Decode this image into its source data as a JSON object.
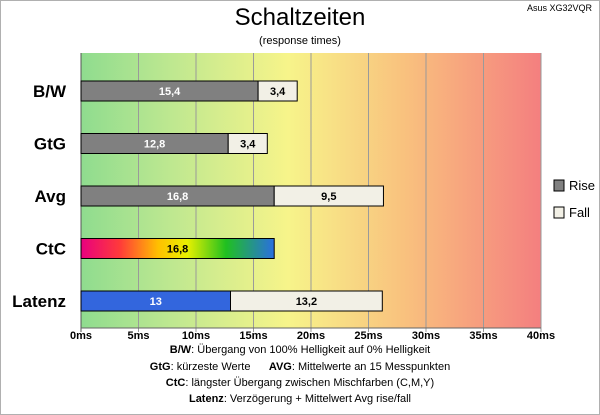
{
  "header": {
    "title": "Schaltzeiten",
    "subtitle": "(response times)",
    "corner": "Asus XG32VQR"
  },
  "footnotes": [
    {
      "key": "B/W",
      "text": ":  Übergang von 100% Helligkeit auf 0% Helligkeit"
    },
    {
      "key": "GtG",
      "text": ": kürzeste  Werte",
      "key2": "AVG",
      "text2": ": Mittelwerte  an 15 Messpunkten"
    },
    {
      "key": "CtC",
      "text": ": längster Übergang  zwischen Mischfarben (C,M,Y)"
    },
    {
      "key": "Latenz",
      "text": ": Verzögerung  + Mittelwert  Avg rise/fall"
    }
  ],
  "chart_data": {
    "type": "bar",
    "orientation": "horizontal",
    "stacked": true,
    "categories": [
      "B/W",
      "GtG",
      "Avg",
      "CtC",
      "Latenz"
    ],
    "series": [
      {
        "name": "Rise",
        "values": [
          15.4,
          12.8,
          16.8,
          16.8,
          13
        ],
        "labels": [
          "15,4",
          "12,8",
          "16,8",
          "16,8",
          "13"
        ],
        "color": "#808080"
      },
      {
        "name": "Fall",
        "values": [
          3.4,
          3.4,
          9.5,
          null,
          13.2
        ],
        "labels": [
          "3,4",
          "3,4",
          "9,5",
          "",
          "13,2"
        ],
        "color": "#f2f0e6"
      }
    ],
    "special_colors": {
      "CtC": "rainbow",
      "Latenz": "#3366dd"
    },
    "x_ticks": [
      "0ms",
      "5ms",
      "10ms",
      "15ms",
      "20ms",
      "25ms",
      "30ms",
      "35ms",
      "40ms"
    ],
    "xlim": [
      0,
      40
    ],
    "grid": true,
    "background": "gradient green-yellow-red",
    "legend_position": "right"
  }
}
